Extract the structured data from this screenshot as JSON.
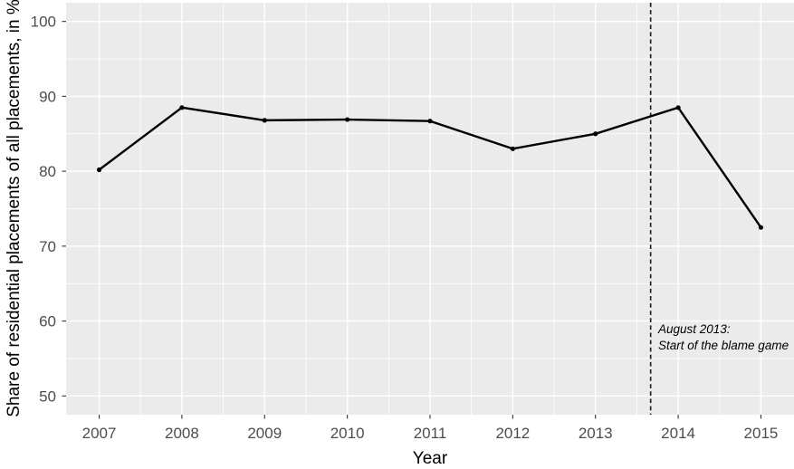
{
  "figure": {
    "background": "#ffffff",
    "panel_background": "#ebebeb",
    "grid_color": "#ffffff",
    "line_color": "#000000",
    "point_color": "#000000",
    "tick_mark_color": "#333333",
    "tick_label_color": "#4d4d4d",
    "axis_title_color": "#000000",
    "vline_color": "#1a1a1a"
  },
  "chart_data": {
    "type": "line",
    "title": "",
    "xlabel": "Year",
    "ylabel": "Share of residential placements of all placements, in %",
    "x": [
      2007,
      2008,
      2009,
      2010,
      2011,
      2012,
      2013,
      2014,
      2015
    ],
    "series": [
      {
        "name": "Share of residential placements",
        "values": [
          80.2,
          88.5,
          86.8,
          86.9,
          86.7,
          83.0,
          85.0,
          88.5,
          72.5
        ]
      }
    ],
    "x_ticks": [
      2007,
      2008,
      2009,
      2010,
      2011,
      2012,
      2013,
      2014,
      2015
    ],
    "y_ticks": [
      50,
      60,
      70,
      80,
      90,
      100
    ],
    "x_minor_ticks": [
      2007.5,
      2008.5,
      2009.5,
      2010.5,
      2011.5,
      2012.5,
      2013.5,
      2014.5
    ],
    "y_minor_ticks": [
      55,
      65,
      75,
      85,
      95
    ],
    "x_range": [
      2006.6,
      2015.4
    ],
    "y_range": [
      47.5,
      102.5
    ],
    "grid": "major and minor white gridlines on gray panel",
    "legend": "none",
    "vline": {
      "x": 2013.667,
      "linetype": "dashed"
    },
    "annotation": {
      "lines": [
        "August 2013:",
        "Start of the blame game"
      ],
      "x": 2013.667,
      "style": "italic"
    }
  }
}
